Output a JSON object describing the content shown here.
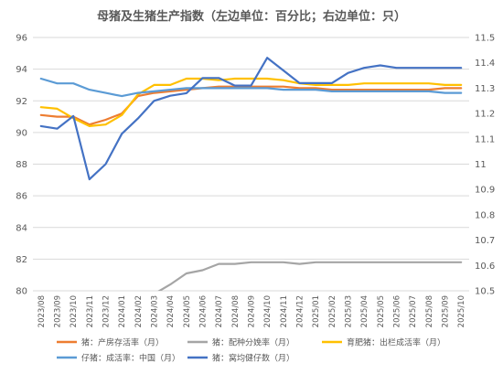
{
  "chart_data": {
    "type": "line",
    "title": "母猪及生猪生产指数（左边单位：百分比；右边单位：只）",
    "x": [
      "2023/08",
      "2023/09",
      "2023/10",
      "2023/11",
      "2023/12",
      "2024/01",
      "2024/02",
      "2024/03",
      "2024/04",
      "2024/05",
      "2024/06",
      "2024/07",
      "2024/08",
      "2024/09",
      "2024/10",
      "2024/11",
      "2024/12",
      "2025/01",
      "2025/02",
      "2025/03",
      "2025/04",
      "2025/05",
      "2025/06",
      "2025/07",
      "2025/08",
      "2025/09",
      "2025/10"
    ],
    "y_left": {
      "ylim": [
        80,
        96
      ],
      "ticks": [
        80,
        82,
        84,
        86,
        88,
        90,
        92,
        94,
        96
      ]
    },
    "y_right": {
      "ylim": [
        10.5,
        11.5
      ],
      "ticks": [
        "10.5",
        "10.6",
        "10.7",
        "10.8",
        "10.9",
        "11",
        "11.1",
        "11.2",
        "11.3",
        "11.4",
        "11.5"
      ]
    },
    "grid": true,
    "legend_position": "bottom",
    "series": [
      {
        "name": "猪：产房存活率（月）",
        "axis": "left",
        "color": "#ed7d31",
        "values": [
          91.1,
          91.0,
          91.0,
          90.5,
          90.8,
          91.2,
          92.3,
          92.5,
          92.6,
          92.7,
          92.8,
          92.9,
          92.9,
          92.9,
          92.9,
          92.9,
          92.8,
          92.8,
          92.7,
          92.7,
          92.7,
          92.7,
          92.7,
          92.7,
          92.7,
          92.8,
          92.8
        ]
      },
      {
        "name": "猪：配种分娩率（月）",
        "axis": "left",
        "color": "#a5a5a5",
        "values": [
          null,
          null,
          null,
          null,
          null,
          null,
          79.3,
          79.8,
          80.4,
          81.1,
          81.3,
          81.7,
          81.7,
          81.8,
          81.8,
          81.8,
          81.7,
          81.8,
          81.8,
          81.8,
          81.8,
          81.8,
          81.8,
          81.8,
          81.8,
          81.8,
          81.8
        ]
      },
      {
        "name": "育肥猪：出栏成活率（月）",
        "axis": "left",
        "color": "#ffc000",
        "values": [
          91.6,
          91.5,
          90.9,
          90.4,
          90.5,
          91.1,
          92.4,
          93.0,
          93.0,
          93.4,
          93.4,
          93.3,
          93.4,
          93.4,
          93.4,
          93.3,
          93.1,
          93.0,
          93.0,
          93.0,
          93.1,
          93.1,
          93.1,
          93.1,
          93.1,
          93.0,
          93.0
        ]
      },
      {
        "name": "仔猪：成活率：中国（月）",
        "axis": "left",
        "color": "#5b9bd5",
        "values": [
          93.4,
          93.1,
          93.1,
          92.7,
          92.5,
          92.3,
          92.5,
          92.6,
          92.7,
          92.8,
          92.8,
          92.8,
          92.8,
          92.8,
          92.8,
          92.7,
          92.7,
          92.7,
          92.6,
          92.6,
          92.6,
          92.6,
          92.6,
          92.6,
          92.6,
          92.5,
          92.5
        ]
      },
      {
        "name": "猪：窝均健仔数（月）",
        "axis": "right",
        "color": "#4472c4",
        "values": [
          11.15,
          11.14,
          11.19,
          10.94,
          11.0,
          11.12,
          11.18,
          11.25,
          11.27,
          11.28,
          11.34,
          11.34,
          11.31,
          11.31,
          11.42,
          11.37,
          11.32,
          11.32,
          11.32,
          11.36,
          11.38,
          11.39,
          11.38,
          11.38,
          11.38,
          11.38,
          11.38
        ]
      }
    ]
  }
}
